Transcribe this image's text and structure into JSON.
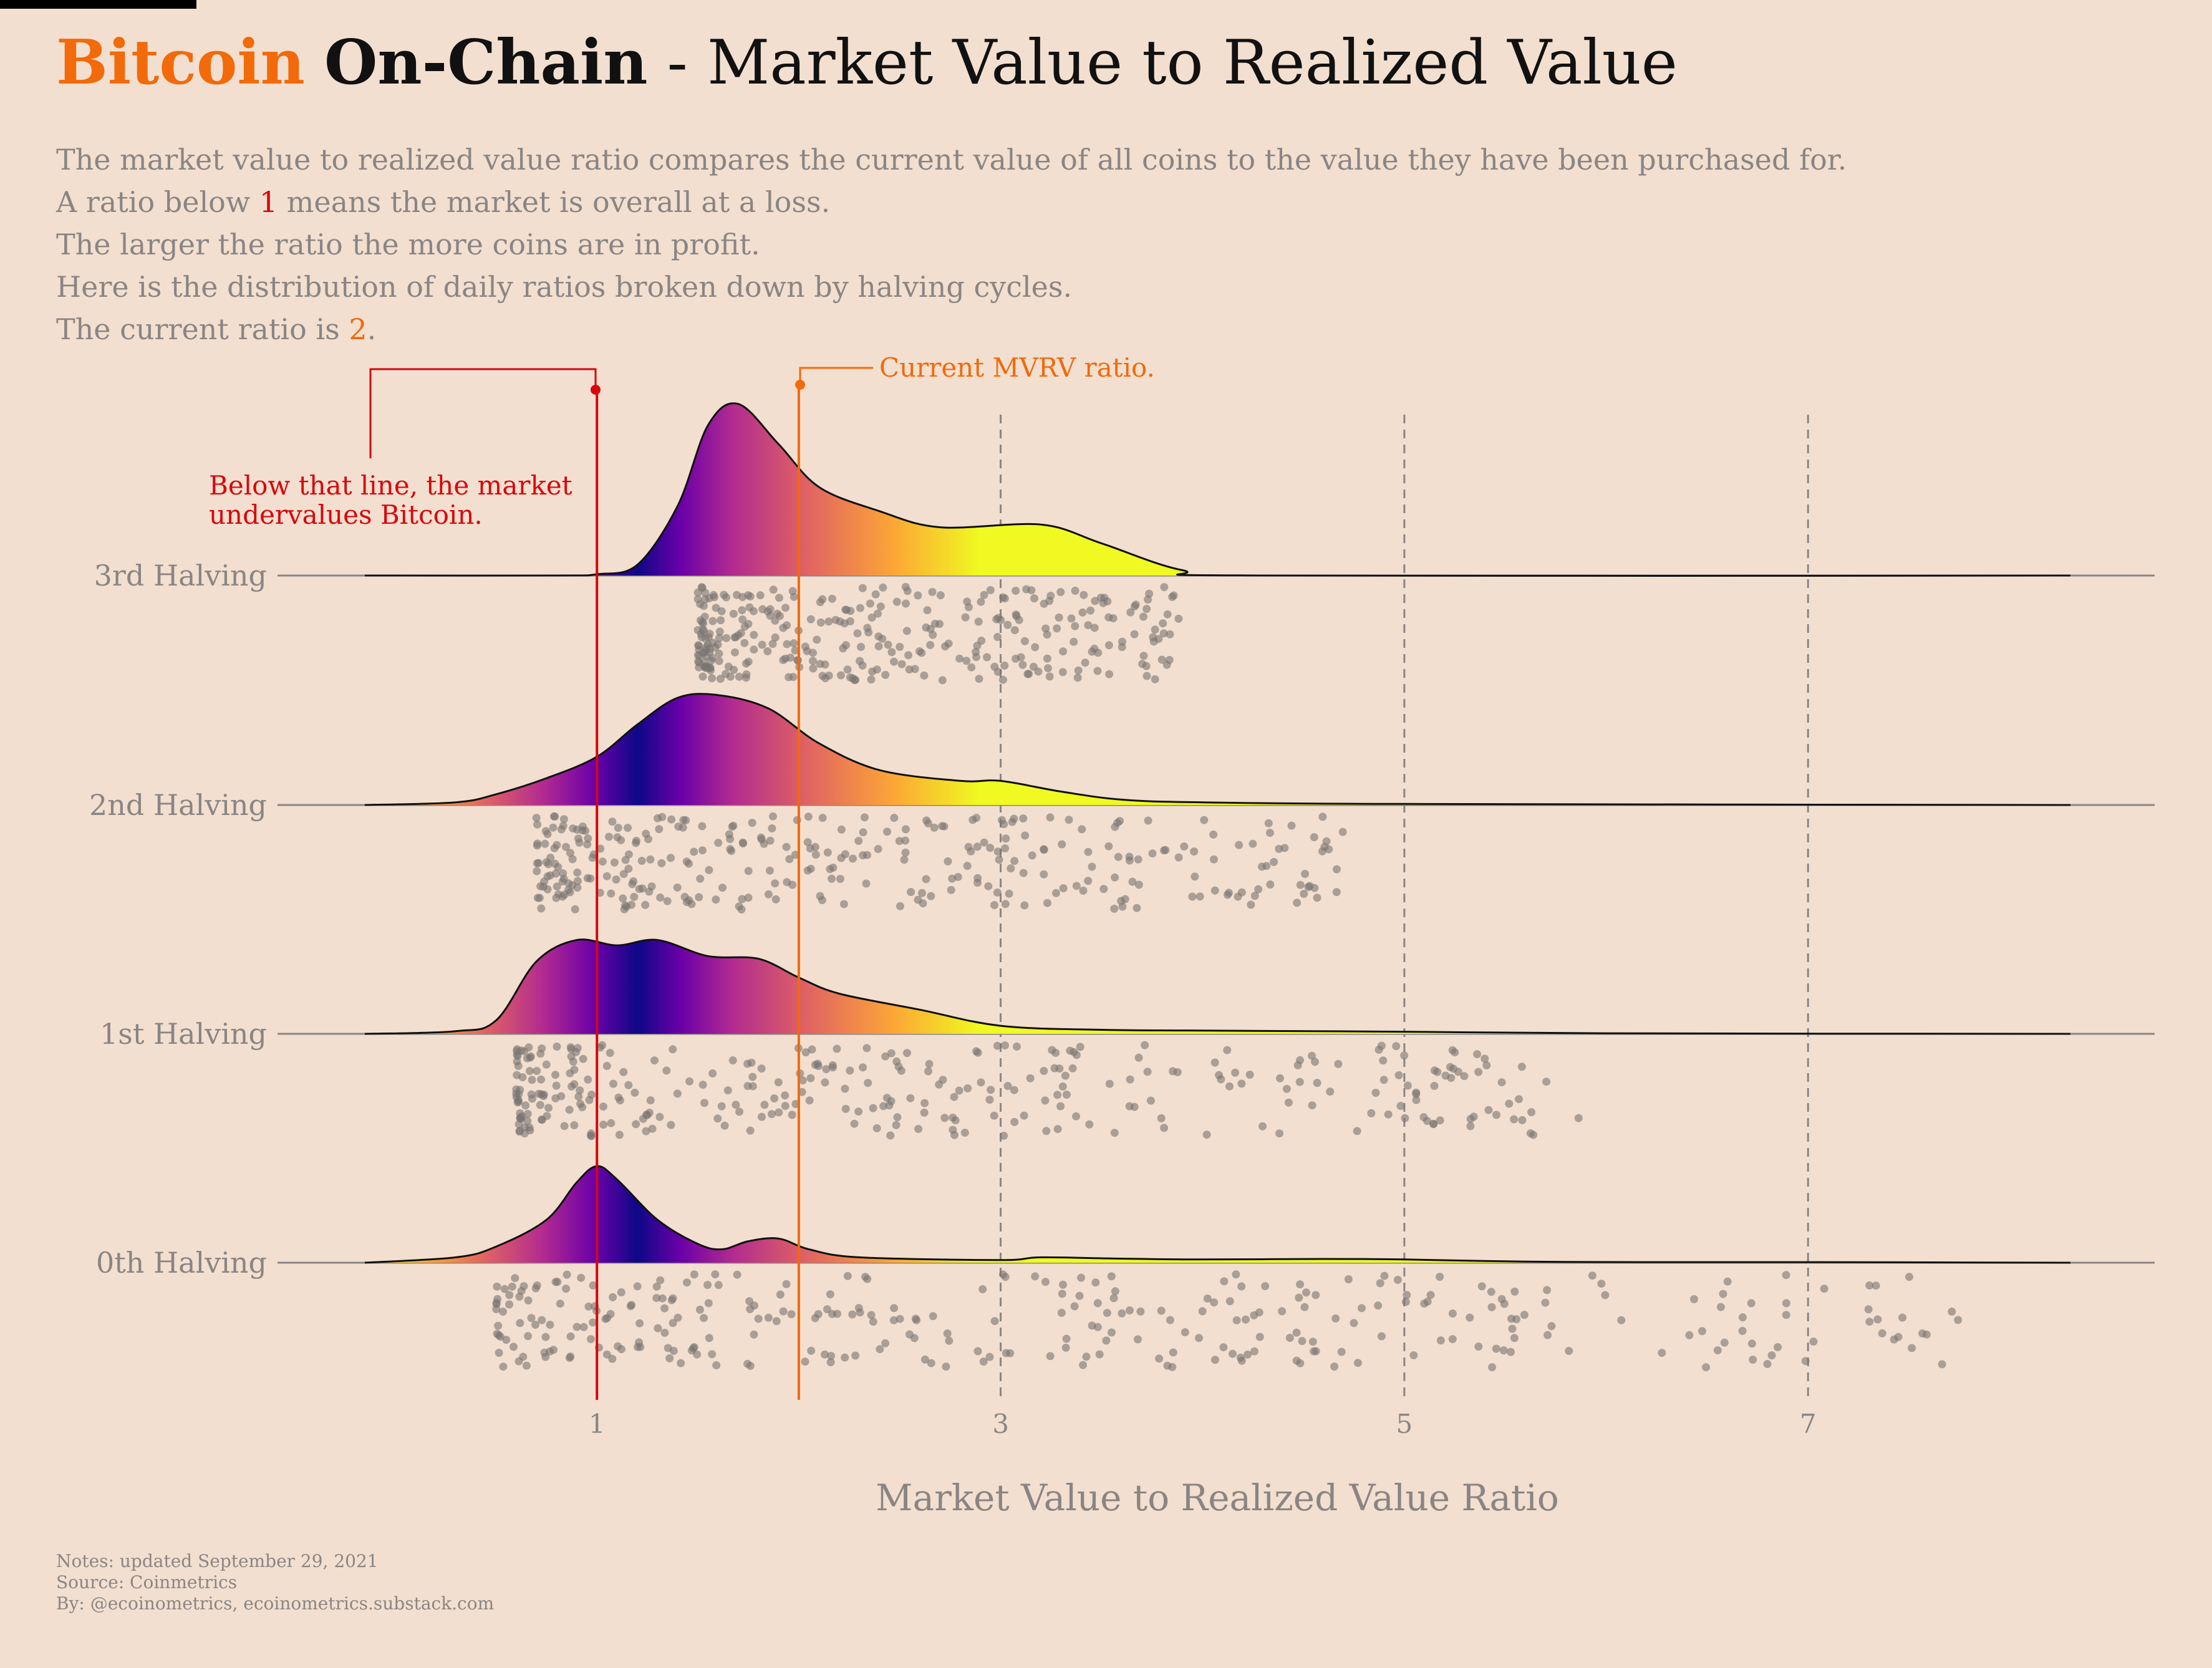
{
  "title": {
    "brand": "Bitcoin",
    "section": "On-Chain",
    "sep": " - ",
    "rest": "Market Value to Realized Value"
  },
  "subtitle": {
    "line1": "The market value to realized value ratio compares the current value of all coins to the value they have been purchased for.",
    "line2_pre": "A ratio below ",
    "line2_num": "1",
    "line2_post": " means the market is overall at a loss.",
    "line3": "The larger the ratio the more coins are in profit.",
    "line4": "Here is the distribution of daily ratios broken down by halving cycles.",
    "line5_pre": "The current ratio is ",
    "line5_num": "2",
    "line5_post": "."
  },
  "annotations": {
    "below_line1": "Below that line, the market",
    "below_line2": "undervalues Bitcoin.",
    "current": "Current MVRV ratio."
  },
  "notes": {
    "line1": "Notes: updated September 29, 2021",
    "line2": "Source: Coinmetrics",
    "line3": "By: @ecoinometrics, ecoinometrics.substack.com"
  },
  "colors": {
    "background": "#f2dfcf",
    "accent_orange": "#f26a0a",
    "accent_red": "#d8060c",
    "points": "#7a7572",
    "text_grey": "#8a8584"
  },
  "chart_data": {
    "type": "ridgeline",
    "xlabel": "Market Value to Realized Value Ratio",
    "xlim": [
      -0.15,
      8.3
    ],
    "x_ticks": [
      1,
      3,
      5,
      7
    ],
    "x_tick_labels": [
      "1",
      "3",
      "5",
      "7"
    ],
    "reference_lines": {
      "undervalued": 1,
      "current": 2
    },
    "grid": "dashed vertical lines at 3, 5 and 7",
    "fill": "plasma gradient along x",
    "series": [
      {
        "name": "0th Halving",
        "density_x": [
          -0.15,
          0.3,
          0.5,
          0.75,
          0.9,
          1.0,
          1.1,
          1.3,
          1.5,
          1.62,
          1.75,
          1.9,
          2.05,
          2.3,
          3.0,
          3.2,
          3.6,
          4.0,
          4.6,
          5.0,
          5.6,
          6.2,
          7.0,
          8.3
        ],
        "density_y": [
          0,
          0.02,
          0.06,
          0.16,
          0.3,
          0.36,
          0.31,
          0.16,
          0.07,
          0.05,
          0.08,
          0.09,
          0.05,
          0.02,
          0.01,
          0.02,
          0.015,
          0.012,
          0.014,
          0.012,
          0.004,
          0.002,
          0.002,
          0
        ],
        "point_range": [
          0.5,
          7.8
        ]
      },
      {
        "name": "1st Halving",
        "density_x": [
          -0.15,
          0.3,
          0.5,
          0.7,
          0.9,
          1.1,
          1.3,
          1.55,
          1.8,
          2.0,
          2.2,
          2.6,
          3.0,
          3.5,
          4.0,
          5.0,
          6.0,
          8.3
        ],
        "density_y": [
          0,
          0.01,
          0.05,
          0.27,
          0.35,
          0.33,
          0.35,
          0.29,
          0.28,
          0.21,
          0.15,
          0.09,
          0.03,
          0.015,
          0.012,
          0.008,
          0.002,
          0
        ],
        "point_range": [
          0.6,
          5.9
        ]
      },
      {
        "name": "2nd Halving",
        "density_x": [
          -0.15,
          0.3,
          0.5,
          0.75,
          1.0,
          1.2,
          1.4,
          1.6,
          1.85,
          2.1,
          2.4,
          2.8,
          3.0,
          3.3,
          3.6,
          4.0,
          5.0,
          8.3
        ],
        "density_y": [
          0,
          0.01,
          0.04,
          0.1,
          0.18,
          0.3,
          0.4,
          0.41,
          0.36,
          0.23,
          0.13,
          0.09,
          0.09,
          0.05,
          0.02,
          0.01,
          0.004,
          0
        ],
        "point_range": [
          0.7,
          4.7
        ]
      },
      {
        "name": "3rd Halving",
        "density_x": [
          -0.15,
          0.8,
          1.0,
          1.2,
          1.4,
          1.55,
          1.7,
          1.9,
          2.1,
          2.4,
          2.7,
          3.2,
          3.5,
          3.9,
          4.3,
          8.3
        ],
        "density_y": [
          0,
          0.0,
          0.005,
          0.04,
          0.26,
          0.56,
          0.64,
          0.49,
          0.33,
          0.24,
          0.18,
          0.19,
          0.12,
          0.02,
          0.0,
          0
        ],
        "point_range": [
          1.5,
          3.9
        ]
      }
    ]
  }
}
